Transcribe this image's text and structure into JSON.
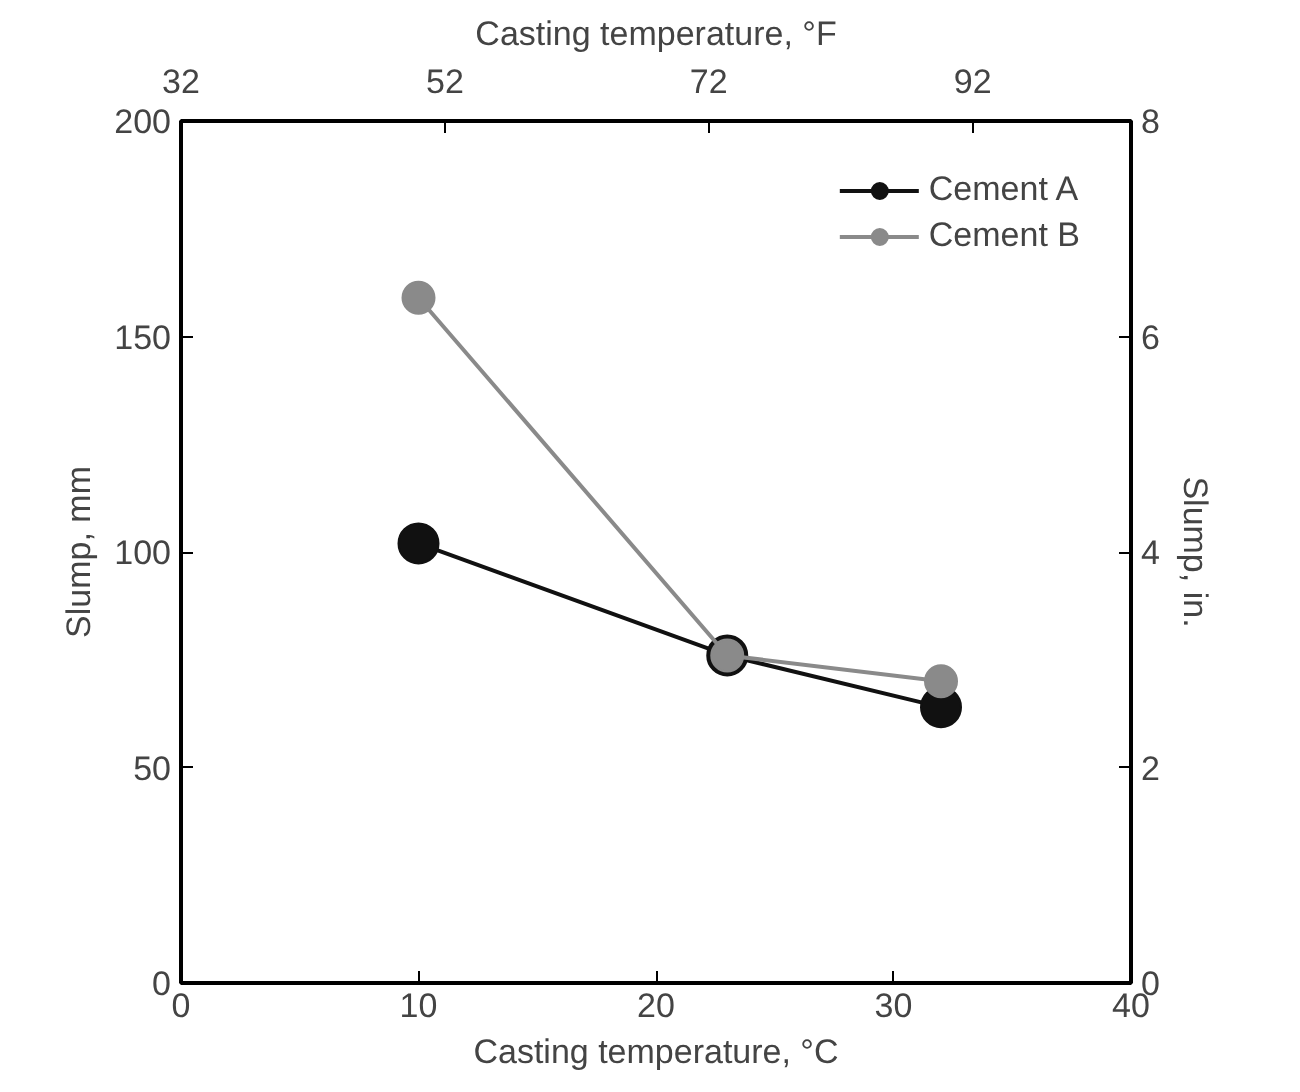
{
  "chart_data": {
    "type": "line",
    "xlabel": "Casting temperature, °C",
    "ylabel": "Slump, mm",
    "y2label": "Slump, in.",
    "x2label": "Casting temperature, °F",
    "x": [
      10,
      23,
      32
    ],
    "series": [
      {
        "name": "Cement A",
        "color": "#111111",
        "values": [
          102,
          76,
          64
        ]
      },
      {
        "name": "Cement B",
        "color": "#8a8a8a",
        "values": [
          159,
          76,
          70
        ]
      }
    ],
    "xlim": [
      0,
      40
    ],
    "xticks": [
      0,
      10,
      20,
      30,
      40
    ],
    "ylim": [
      0,
      200
    ],
    "yticks": [
      0,
      50,
      100,
      150,
      200
    ],
    "y2lim": [
      0,
      8
    ],
    "y2ticks": [
      0,
      2,
      4,
      6,
      8
    ],
    "x2lim": [
      32,
      104
    ],
    "x2ticks": [
      32,
      52,
      72,
      92
    ],
    "marker": "circle",
    "line_style": "solid",
    "grid": false,
    "legend": "top right"
  }
}
